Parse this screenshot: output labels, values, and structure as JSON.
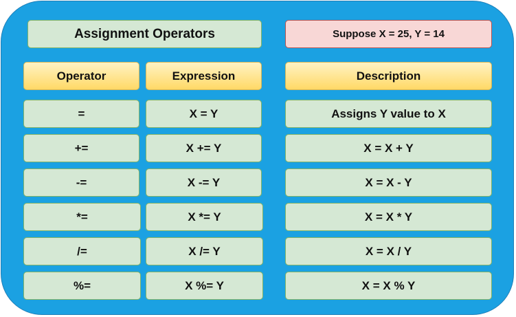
{
  "title": "Assignment Operators",
  "note": "Suppose X = 25, Y = 14",
  "headers": {
    "operator": "Operator",
    "expression": "Expression",
    "description": "Description"
  },
  "rows": [
    {
      "operator": "=",
      "expression": "X = Y",
      "description": "Assigns Y value to X"
    },
    {
      "operator": "+=",
      "expression": "X += Y",
      "description": "X = X + Y"
    },
    {
      "operator": "-=",
      "expression": "X -= Y",
      "description": "X = X - Y"
    },
    {
      "operator": "*=",
      "expression": "X *= Y",
      "description": "X = X * Y"
    },
    {
      "operator": "/=",
      "expression": "X /= Y",
      "description": "X = X / Y"
    },
    {
      "operator": "%=",
      "expression": "X %= Y",
      "description": "X = X % Y"
    }
  ]
}
